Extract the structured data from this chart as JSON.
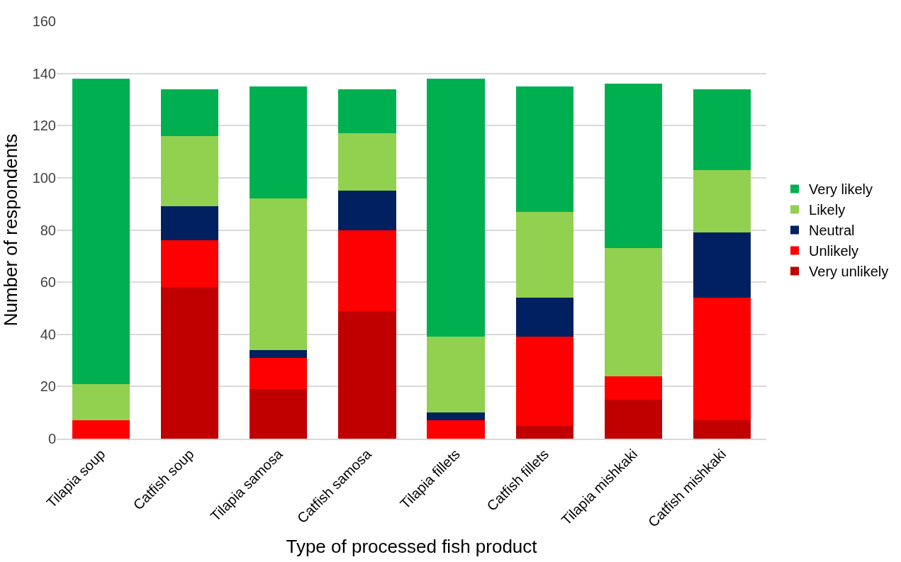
{
  "chart_data": {
    "type": "bar",
    "stacked": true,
    "xlabel": "Type of processed fish product",
    "ylabel": "Number of respondents",
    "categories": [
      "Tilapia soup",
      "Catfish soup",
      "Tilapia samosa",
      "Catfish samosa",
      "Tilapia fillets",
      "Catfish fillets",
      "Tilapia mishkaki",
      "Catfish mishkaki"
    ],
    "series": [
      {
        "name": "Very unlikely",
        "color": "#c00000",
        "values": [
          0,
          58,
          19,
          49,
          0,
          5,
          15,
          7
        ]
      },
      {
        "name": "Unlikely",
        "color": "#ff0000",
        "values": [
          7,
          18,
          12,
          31,
          7,
          34,
          9,
          47
        ]
      },
      {
        "name": "Neutral",
        "color": "#002060",
        "values": [
          0,
          13,
          3,
          15,
          3,
          15,
          0,
          25
        ]
      },
      {
        "name": "Likely",
        "color": "#92d050",
        "values": [
          14,
          27,
          58,
          22,
          29,
          33,
          49,
          24
        ]
      },
      {
        "name": "Very likely",
        "color": "#00b050",
        "values": [
          117,
          18,
          43,
          17,
          99,
          48,
          63,
          31
        ]
      }
    ],
    "ylim": [
      0,
      160
    ],
    "yticks": [
      0,
      20,
      40,
      60,
      80,
      100,
      120,
      140,
      160
    ],
    "grid": "y",
    "legend": "right"
  }
}
